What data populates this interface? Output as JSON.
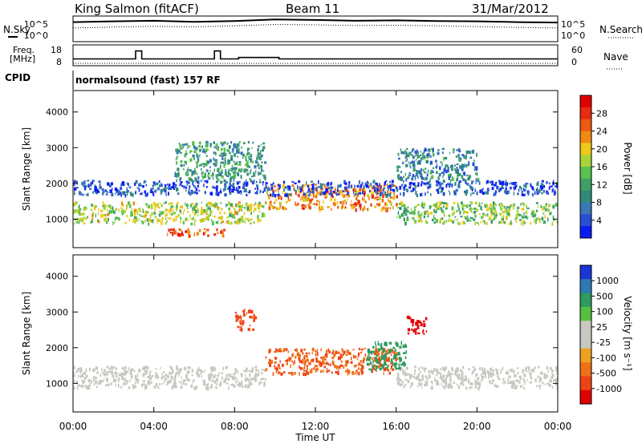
{
  "header": {
    "station": "King Salmon (fitACF)",
    "beam": "Beam 11",
    "date": "31/Mar/2012"
  },
  "side_labels": {
    "nsky": "N.Sky",
    "nsearch": "N.Search",
    "freq_line1": "Freq.",
    "freq_line2": "[MHz]",
    "nave": "Nave",
    "cpid": "CPID"
  },
  "noise_axis": {
    "left_ticks": [
      "10^5",
      "10^0"
    ],
    "right_ticks": [
      "10^5",
      "10^0"
    ]
  },
  "freq_axis": {
    "ticks": [
      "18",
      "8"
    ]
  },
  "nave_axis": {
    "ticks": [
      "60",
      "0"
    ]
  },
  "cpid_text": "normalsound (fast) 157 RF",
  "range_axis": {
    "label": "Slant Range [km]",
    "ticks": [
      "1000",
      "2000",
      "3000",
      "4000"
    ],
    "tick_values": [
      1000,
      2000,
      3000,
      4000
    ],
    "range": [
      200,
      4600
    ]
  },
  "time_axis": {
    "label": "Time UT",
    "ticks": [
      "00:00",
      "04:00",
      "08:00",
      "12:00",
      "16:00",
      "20:00",
      "00:00"
    ],
    "tick_hours": [
      0,
      4,
      8,
      12,
      16,
      20,
      24
    ],
    "range_hours": [
      0,
      24
    ]
  },
  "power_scale": {
    "label": "Power [dB]",
    "ticks": [
      "4",
      "8",
      "12",
      "16",
      "20",
      "24",
      "28"
    ],
    "colors": [
      "#0a1cf0",
      "#2a4fd6",
      "#3a78b8",
      "#2f8a7a",
      "#3ea066",
      "#58c24c",
      "#a8d43a",
      "#f0c81a",
      "#f08a10",
      "#ee5810",
      "#e82a10",
      "#e00000"
    ]
  },
  "velocity_scale": {
    "label": "Velocity [m s⁻¹]",
    "ticks": [
      "1000",
      "500",
      "100",
      "25",
      "-25",
      "-100",
      "-500",
      "-1000"
    ],
    "colors": [
      "#1a36d6",
      "#2e78b6",
      "#2f9a5e",
      "#58c040",
      "#c8c8c0",
      "#c8c8c0",
      "#f0a020",
      "#f07018",
      "#ee4414",
      "#e00000"
    ]
  },
  "chart_data": [
    {
      "type": "line",
      "title": "King Salmon (fitACF) Beam 11 31/Mar/2012",
      "xlabel": "",
      "ylabel": "N.Sky / N.Search",
      "yscale": "log",
      "ylim": [
        1,
        100000
      ],
      "x": [
        0,
        2,
        4,
        6,
        8,
        10,
        12,
        14,
        16,
        18,
        20,
        22,
        24
      ],
      "series": [
        {
          "name": "N.Sky",
          "values": [
            10000,
            15000,
            20000,
            12000,
            18000,
            40000,
            30000,
            20000,
            25000,
            18000,
            15000,
            10000,
            8000
          ]
        },
        {
          "name": "N.Search",
          "values": [
            500,
            800,
            1200,
            900,
            1500,
            3000,
            2500,
            1800,
            2000,
            1500,
            1000,
            700,
            500
          ]
        }
      ]
    },
    {
      "type": "line",
      "title": "",
      "xlabel": "",
      "ylabel": "Freq. [MHz] / Nave",
      "ylim": [
        8,
        18
      ],
      "x": [
        0,
        3.1,
        3.1,
        3.4,
        3.4,
        7.0,
        7.0,
        7.3,
        7.3,
        8.2,
        8.2,
        10.2,
        10.2,
        24
      ],
      "series": [
        {
          "name": "Freq.",
          "values": [
            10.5,
            10.5,
            16,
            16,
            10.5,
            10.5,
            16,
            16,
            10.5,
            10.5,
            11.5,
            11.5,
            10.5,
            10.5
          ]
        }
      ]
    },
    {
      "type": "heatmap",
      "title": "",
      "xlabel": "",
      "ylabel": "Slant Range [km]",
      "colorbar": "Power [dB]",
      "xlim": [
        0,
        24
      ],
      "ylim": [
        200,
        4600
      ],
      "bands": [
        {
          "t0": 0.0,
          "t1": 9.5,
          "r0": 900,
          "r1": 1500,
          "value": 18
        },
        {
          "t0": 9.5,
          "t1": 16.0,
          "r0": 1300,
          "r1": 2000,
          "value": 24
        },
        {
          "t0": 16.0,
          "t1": 24.0,
          "r0": 900,
          "r1": 1500,
          "value": 16
        },
        {
          "t0": 4.5,
          "t1": 7.5,
          "r0": 550,
          "r1": 750,
          "value": 26
        },
        {
          "t0": 0.0,
          "t1": 24.0,
          "r0": 1700,
          "r1": 2100,
          "value": 6
        },
        {
          "t0": 5.0,
          "t1": 9.5,
          "r0": 2100,
          "r1": 3200,
          "value": 12
        },
        {
          "t0": 16.0,
          "t1": 20.0,
          "r0": 2100,
          "r1": 3000,
          "value": 10
        }
      ]
    },
    {
      "type": "heatmap",
      "title": "",
      "xlabel": "Time UT",
      "ylabel": "Slant Range [km]",
      "colorbar": "Velocity [m s⁻¹]",
      "xlim": [
        0,
        24
      ],
      "ylim": [
        200,
        4600
      ],
      "bands": [
        {
          "t0": 0.0,
          "t1": 9.5,
          "r0": 900,
          "r1": 1500,
          "value": 0
        },
        {
          "t0": 9.5,
          "t1": 16.0,
          "r0": 1300,
          "r1": 2000,
          "value": -300
        },
        {
          "t0": 16.0,
          "t1": 24.0,
          "r0": 900,
          "r1": 1500,
          "value": 0
        },
        {
          "t0": 14.5,
          "t1": 16.5,
          "r0": 1400,
          "r1": 2200,
          "value": 150
        },
        {
          "t0": 8.0,
          "t1": 9.0,
          "r0": 2500,
          "r1": 3100,
          "value": -600
        },
        {
          "t0": 16.5,
          "t1": 17.5,
          "r0": 2400,
          "r1": 2900,
          "value": -800
        }
      ]
    }
  ]
}
